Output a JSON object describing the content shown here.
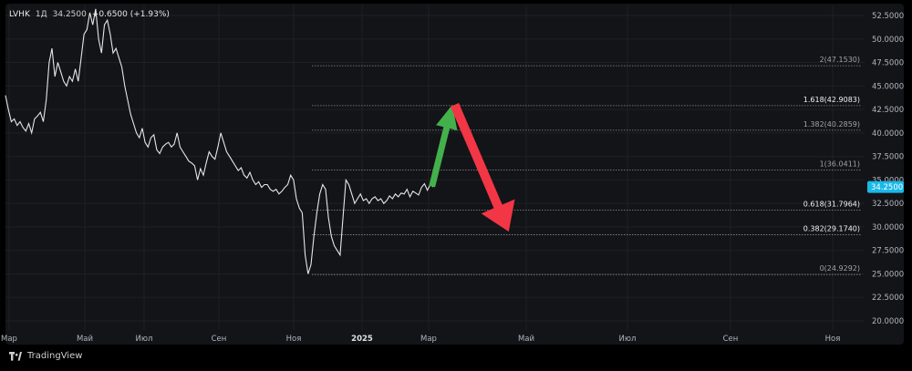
{
  "header": {
    "symbol": "LVHK",
    "interval": "1Д",
    "last": "34.2500",
    "change": "+0.6500 (+1.93%)"
  },
  "footer": {
    "brand": "TradingView"
  },
  "colors": {
    "background": "#131418",
    "outer": "#000000",
    "line": "#e6e6e6",
    "grid": "#1e2026",
    "fib": "#8a8d96",
    "price_tag": "#1ab8e8",
    "arrow_up": "#44b04b",
    "arrow_down": "#f23645"
  },
  "chart_data": {
    "type": "line",
    "y_axis": {
      "ticks": [
        "52.5000",
        "50.0000",
        "47.5000",
        "45.0000",
        "42.5000",
        "40.0000",
        "37.5000",
        "35.0000",
        "32.5000",
        "30.0000",
        "27.5000",
        "25.0000",
        "22.5000",
        "20.0000"
      ],
      "ylim": [
        19.5,
        53.2
      ]
    },
    "x_axis": {
      "ticks": [
        "Мар",
        "Май",
        "Июл",
        "Сен",
        "Ноя",
        "2025",
        "Мар",
        "Май",
        "Июл",
        "Сен",
        "Ноя"
      ]
    },
    "last_price": 34.25,
    "fib_levels": [
      {
        "ratio": 2,
        "value": 47.153,
        "label": "2(47.1530)",
        "emphasis": false
      },
      {
        "ratio": 1.618,
        "value": 42.9083,
        "label": "1.618(42.9083)",
        "emphasis": true
      },
      {
        "ratio": 1.382,
        "value": 40.2859,
        "label": "1.382(40.2859)",
        "emphasis": false
      },
      {
        "ratio": 1,
        "value": 36.0411,
        "label": "1(36.0411)",
        "emphasis": false
      },
      {
        "ratio": 0.618,
        "value": 31.7964,
        "label": "0.618(31.7964)",
        "emphasis": true
      },
      {
        "ratio": 0.382,
        "value": 29.174,
        "label": "0.382(29.1740)",
        "emphasis": true
      },
      {
        "ratio": 0,
        "value": 24.9292,
        "label": "0(24.9292)",
        "emphasis": false
      }
    ],
    "series": [
      {
        "values": [
          44.0,
          42.5,
          41.2,
          41.5,
          40.8,
          41.2,
          40.6,
          40.2,
          41.0,
          40.0,
          41.5,
          41.8,
          42.2,
          41.2,
          43.5,
          47.5,
          49.0,
          46.0,
          47.5,
          46.5,
          45.5,
          45.0,
          46.0,
          45.5,
          46.8,
          45.5,
          48.0,
          50.5,
          51.0,
          52.8,
          51.5,
          53.2,
          50.0,
          48.5,
          51.5,
          52.0,
          50.5,
          48.5,
          49.0,
          48.0,
          47.0,
          45.0,
          43.5,
          42.0,
          41.0,
          40.0,
          39.5,
          40.5,
          39.0,
          38.5,
          39.5,
          39.8,
          38.2,
          37.8,
          38.5,
          38.8,
          39.0,
          38.5,
          38.8,
          40.0,
          38.5,
          38.0,
          37.5,
          37.0,
          36.8,
          36.5,
          35.0,
          36.2,
          35.5,
          36.8,
          38.0,
          37.5,
          37.2,
          38.5,
          40.0,
          39.0,
          38.0,
          37.5,
          37.0,
          36.5,
          36.0,
          36.3,
          35.5,
          35.2,
          35.8,
          35.0,
          34.5,
          34.8,
          34.2,
          34.5,
          34.5,
          34.0,
          33.8,
          34.0,
          33.5,
          33.8,
          34.2,
          34.5,
          35.5,
          35.0,
          33.0,
          32.0,
          31.5,
          27.0,
          25.0,
          26.0,
          29.0,
          31.5,
          33.5,
          34.5,
          34.0,
          31.0,
          29.0,
          28.0,
          27.5,
          27.0,
          31.0,
          35.0,
          34.5,
          33.5,
          32.5,
          33.0,
          33.5,
          32.8,
          33.0,
          32.5,
          33.0,
          33.2,
          32.8,
          33.0,
          32.5,
          32.8,
          33.3,
          33.0,
          33.5,
          33.2,
          33.6,
          33.5,
          34.0,
          33.2,
          33.8,
          33.6,
          33.4,
          34.2,
          34.6,
          33.9,
          34.5,
          34.25
        ]
      }
    ],
    "annotations": [
      {
        "type": "arrow",
        "direction": "up",
        "from": [
          "2025-03-04",
          34.3
        ],
        "to": [
          "2025-03-22",
          43.0
        ]
      },
      {
        "type": "arrow",
        "direction": "down",
        "from": [
          "2025-03-25",
          43.0
        ],
        "to": [
          "2025-05-12",
          29.5
        ]
      }
    ]
  }
}
